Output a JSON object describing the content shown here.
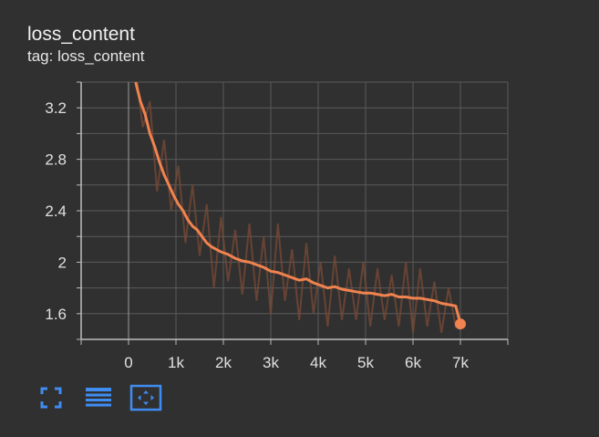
{
  "card": {
    "title": "loss_content",
    "tag": "tag: loss_content"
  },
  "toolbar": {
    "buttons": [
      {
        "name": "fullscreen-icon"
      },
      {
        "name": "data-table-icon"
      },
      {
        "name": "fit-domain-icon"
      }
    ]
  },
  "colors": {
    "smoothed": "#f0834f",
    "raw": "#7a4a35",
    "grid": "#5a5a5a",
    "axis": "#bdbdbd",
    "accent": "#3f8df2"
  },
  "chart_data": {
    "type": "line",
    "title": "",
    "xlabel": "",
    "ylabel": "",
    "xlim": [
      -1000,
      8000
    ],
    "ylim": [
      1.4,
      3.4
    ],
    "xticks": [
      0,
      1000,
      2000,
      3000,
      4000,
      5000,
      6000,
      7000
    ],
    "xtick_labels": [
      "0",
      "1k",
      "2k",
      "3k",
      "4k",
      "5k",
      "6k",
      "7k"
    ],
    "yticks": [
      1.6,
      2,
      2.4,
      2.8,
      3.2
    ],
    "ytick_labels": [
      "1.6",
      "2",
      "2.4",
      "2.8",
      "3.2"
    ],
    "grid": true,
    "series": [
      {
        "role": "raw",
        "x": [
          150,
          300,
          450,
          600,
          750,
          900,
          1050,
          1200,
          1350,
          1500,
          1650,
          1800,
          1950,
          2100,
          2250,
          2400,
          2550,
          2700,
          2850,
          3000,
          3150,
          3300,
          3450,
          3600,
          3750,
          3900,
          4050,
          4200,
          4350,
          4500,
          4650,
          4800,
          4950,
          5100,
          5250,
          5400,
          5550,
          5700,
          5850,
          6000,
          6150,
          6300,
          6450,
          6600,
          6750,
          6900,
          7000
        ],
        "y": [
          3.5,
          3.05,
          3.25,
          2.55,
          2.95,
          2.4,
          2.75,
          2.15,
          2.6,
          2.05,
          2.45,
          1.8,
          2.35,
          1.85,
          2.25,
          1.75,
          2.3,
          1.7,
          2.2,
          1.6,
          2.3,
          1.7,
          2.1,
          1.55,
          2.15,
          1.6,
          2.0,
          1.5,
          2.05,
          1.55,
          1.95,
          1.55,
          2.0,
          1.5,
          1.95,
          1.55,
          1.9,
          1.5,
          2.0,
          1.45,
          1.95,
          1.5,
          1.85,
          1.45,
          1.8,
          1.5,
          1.55
        ]
      },
      {
        "role": "smoothed",
        "x": [
          150,
          250,
          350,
          450,
          550,
          650,
          750,
          850,
          950,
          1050,
          1150,
          1250,
          1350,
          1450,
          1550,
          1650,
          1750,
          1850,
          1950,
          2100,
          2250,
          2400,
          2550,
          2700,
          2850,
          3000,
          3150,
          3300,
          3450,
          3600,
          3750,
          3900,
          4050,
          4200,
          4350,
          4500,
          4650,
          4800,
          4950,
          5100,
          5250,
          5400,
          5550,
          5700,
          5850,
          6000,
          6150,
          6300,
          6450,
          6600,
          6750,
          6900,
          7000
        ],
        "y": [
          3.4,
          3.25,
          3.15,
          3.0,
          2.9,
          2.78,
          2.68,
          2.6,
          2.52,
          2.45,
          2.4,
          2.33,
          2.28,
          2.25,
          2.2,
          2.15,
          2.12,
          2.1,
          2.08,
          2.06,
          2.03,
          2.01,
          2.0,
          1.98,
          1.96,
          1.93,
          1.92,
          1.9,
          1.88,
          1.86,
          1.87,
          1.84,
          1.82,
          1.8,
          1.81,
          1.79,
          1.78,
          1.77,
          1.76,
          1.76,
          1.75,
          1.74,
          1.75,
          1.73,
          1.73,
          1.72,
          1.72,
          1.71,
          1.7,
          1.68,
          1.67,
          1.66,
          1.52
        ]
      }
    ],
    "last_point": {
      "x": 7000,
      "y": 1.52
    }
  }
}
